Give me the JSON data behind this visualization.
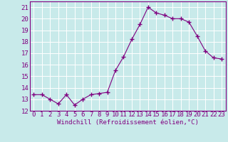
{
  "x": [
    0,
    1,
    2,
    3,
    4,
    5,
    6,
    7,
    8,
    9,
    10,
    11,
    12,
    13,
    14,
    15,
    16,
    17,
    18,
    19,
    20,
    21,
    22,
    23
  ],
  "y": [
    13.4,
    13.4,
    13.0,
    12.6,
    13.4,
    12.5,
    13.0,
    13.4,
    13.5,
    13.6,
    15.5,
    16.7,
    18.2,
    19.5,
    21.0,
    20.5,
    20.3,
    20.0,
    20.0,
    19.7,
    18.5,
    17.2,
    16.6,
    16.5
  ],
  "line_color": "#800080",
  "marker": "+",
  "marker_size": 4,
  "line_width": 0.8,
  "bg_color": "#c8eaea",
  "grid_color": "#b0d8d8",
  "xlabel": "Windchill (Refroidissement éolien,°C)",
  "xlabel_color": "#800080",
  "tick_color": "#800080",
  "spine_color": "#800080",
  "xlim": [
    -0.5,
    23.5
  ],
  "ylim": [
    12,
    21.5
  ],
  "yticks": [
    12,
    13,
    14,
    15,
    16,
    17,
    18,
    19,
    20,
    21
  ],
  "xticks": [
    0,
    1,
    2,
    3,
    4,
    5,
    6,
    7,
    8,
    9,
    10,
    11,
    12,
    13,
    14,
    15,
    16,
    17,
    18,
    19,
    20,
    21,
    22,
    23
  ],
  "xlabel_fontsize": 6.5,
  "tick_fontsize": 6.5
}
